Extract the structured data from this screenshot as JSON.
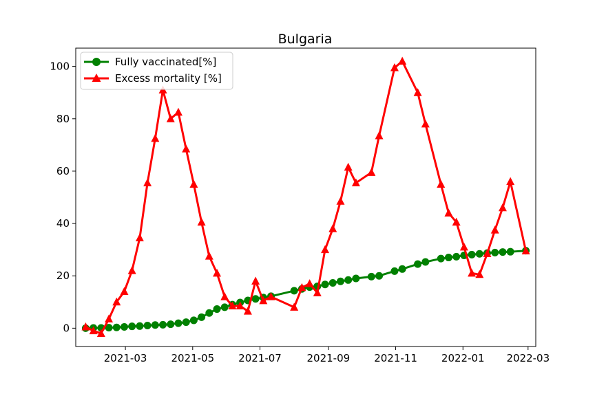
{
  "chart_data": {
    "type": "line",
    "title": "Bulgaria",
    "xlabel": "",
    "ylabel": "",
    "x_axis_type": "date",
    "xlim": [
      "2021-01-15",
      "2022-03-08"
    ],
    "ylim": [
      -7,
      107
    ],
    "x_ticks": [
      "2021-03-01",
      "2021-05-01",
      "2021-07-01",
      "2021-09-01",
      "2021-11-01",
      "2022-01-01",
      "2022-03-01"
    ],
    "x_tick_labels": [
      "2021-03",
      "2021-05",
      "2021-07",
      "2021-09",
      "2021-11",
      "2022-01",
      "2022-03"
    ],
    "y_ticks": [
      0,
      20,
      40,
      60,
      80,
      100
    ],
    "y_tick_labels": [
      "0",
      "20",
      "40",
      "60",
      "80",
      "100"
    ],
    "grid": false,
    "legend_position": "top-left",
    "series": [
      {
        "name": "Fully vaccinated[%]",
        "color": "#008000",
        "marker": "circle",
        "points": [
          [
            "2021-01-24",
            0.0
          ],
          [
            "2021-01-31",
            0.1
          ],
          [
            "2021-02-07",
            0.1
          ],
          [
            "2021-02-14",
            0.2
          ],
          [
            "2021-02-21",
            0.3
          ],
          [
            "2021-02-28",
            0.5
          ],
          [
            "2021-03-07",
            0.7
          ],
          [
            "2021-03-14",
            0.8
          ],
          [
            "2021-03-21",
            1.0
          ],
          [
            "2021-03-28",
            1.2
          ],
          [
            "2021-04-04",
            1.3
          ],
          [
            "2021-04-11",
            1.5
          ],
          [
            "2021-04-18",
            1.9
          ],
          [
            "2021-04-25",
            2.3
          ],
          [
            "2021-05-02",
            3.0
          ],
          [
            "2021-05-09",
            4.2
          ],
          [
            "2021-05-16",
            5.8
          ],
          [
            "2021-05-23",
            7.3
          ],
          [
            "2021-05-30",
            8.0
          ],
          [
            "2021-06-06",
            9.0
          ],
          [
            "2021-06-13",
            9.8
          ],
          [
            "2021-06-20",
            10.6
          ],
          [
            "2021-06-27",
            11.2
          ],
          [
            "2021-07-04",
            11.7
          ],
          [
            "2021-07-11",
            12.2
          ],
          [
            "2021-08-01",
            14.3
          ],
          [
            "2021-08-08",
            15.0
          ],
          [
            "2021-08-15",
            15.7
          ],
          [
            "2021-08-22",
            16.0
          ],
          [
            "2021-08-29",
            16.7
          ],
          [
            "2021-09-05",
            17.3
          ],
          [
            "2021-09-12",
            17.9
          ],
          [
            "2021-09-19",
            18.4
          ],
          [
            "2021-09-26",
            19.0
          ],
          [
            "2021-10-10",
            19.7
          ],
          [
            "2021-10-17",
            20.0
          ],
          [
            "2021-10-31",
            21.8
          ],
          [
            "2021-11-07",
            22.6
          ],
          [
            "2021-11-21",
            24.5
          ],
          [
            "2021-11-28",
            25.3
          ],
          [
            "2021-12-12",
            26.6
          ],
          [
            "2021-12-19",
            27.0
          ],
          [
            "2021-12-26",
            27.3
          ],
          [
            "2022-01-02",
            27.8
          ],
          [
            "2022-01-09",
            28.1
          ],
          [
            "2022-01-16",
            28.4
          ],
          [
            "2022-01-23",
            28.7
          ],
          [
            "2022-01-30",
            28.9
          ],
          [
            "2022-02-06",
            29.1
          ],
          [
            "2022-02-13",
            29.2
          ],
          [
            "2022-02-27",
            29.6
          ]
        ]
      },
      {
        "name": "Excess mortality [%]",
        "color": "#ff0000",
        "marker": "triangle-up",
        "points": [
          [
            "2021-01-24",
            0.5
          ],
          [
            "2021-01-31",
            -1.0
          ],
          [
            "2021-02-07",
            -2.0
          ],
          [
            "2021-02-14",
            3.5
          ],
          [
            "2021-02-21",
            10.0
          ],
          [
            "2021-02-28",
            14.0
          ],
          [
            "2021-03-07",
            22.0
          ],
          [
            "2021-03-14",
            34.5
          ],
          [
            "2021-03-21",
            55.5
          ],
          [
            "2021-03-28",
            72.5
          ],
          [
            "2021-04-04",
            91.0
          ],
          [
            "2021-04-11",
            80.0
          ],
          [
            "2021-04-18",
            82.5
          ],
          [
            "2021-04-25",
            68.5
          ],
          [
            "2021-05-02",
            55.0
          ],
          [
            "2021-05-09",
            40.5
          ],
          [
            "2021-05-16",
            27.5
          ],
          [
            "2021-05-23",
            21.0
          ],
          [
            "2021-05-30",
            12.0
          ],
          [
            "2021-06-06",
            8.5
          ],
          [
            "2021-06-13",
            8.5
          ],
          [
            "2021-06-20",
            6.5
          ],
          [
            "2021-06-27",
            18.0
          ],
          [
            "2021-07-04",
            10.5
          ],
          [
            "2021-07-11",
            12.0
          ],
          [
            "2021-08-01",
            8.0
          ],
          [
            "2021-08-08",
            15.5
          ],
          [
            "2021-08-15",
            17.0
          ],
          [
            "2021-08-22",
            13.5
          ],
          [
            "2021-08-29",
            30.0
          ],
          [
            "2021-09-05",
            38.0
          ],
          [
            "2021-09-12",
            48.5
          ],
          [
            "2021-09-19",
            61.5
          ],
          [
            "2021-09-26",
            55.5
          ],
          [
            "2021-10-10",
            59.5
          ],
          [
            "2021-10-17",
            73.5
          ],
          [
            "2021-10-31",
            99.5
          ],
          [
            "2021-11-07",
            102.0
          ],
          [
            "2021-11-21",
            90.0
          ],
          [
            "2021-11-28",
            78.0
          ],
          [
            "2021-12-12",
            55.0
          ],
          [
            "2021-12-19",
            44.0
          ],
          [
            "2021-12-26",
            40.5
          ],
          [
            "2022-01-02",
            31.0
          ],
          [
            "2022-01-09",
            21.0
          ],
          [
            "2022-01-16",
            20.5
          ],
          [
            "2022-01-23",
            28.5
          ],
          [
            "2022-01-30",
            37.5
          ],
          [
            "2022-02-06",
            46.0
          ],
          [
            "2022-02-13",
            56.0
          ],
          [
            "2022-02-27",
            29.5
          ]
        ]
      }
    ]
  }
}
